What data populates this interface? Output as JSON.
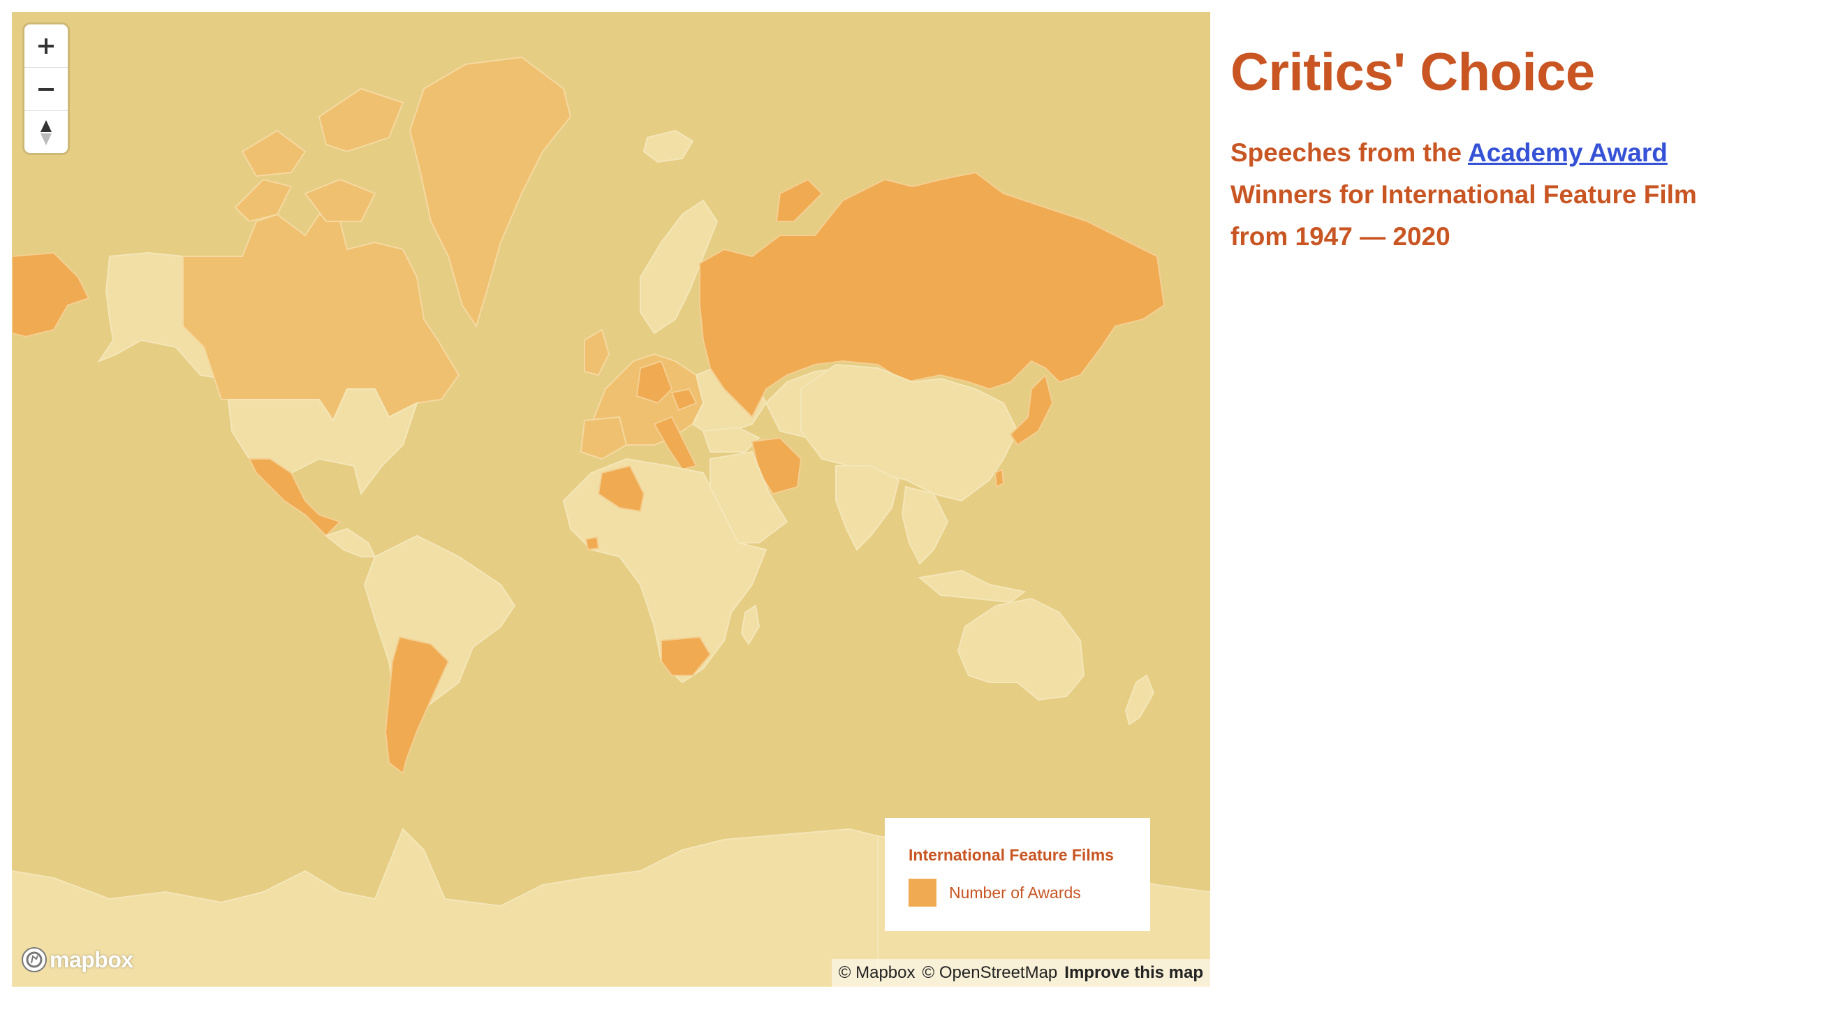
{
  "header": {
    "title": "Critics' Choice",
    "subtitle_before": "Speeches from the",
    "subtitle_link": "Academy Award",
    "subtitle_line2": "Winners for International Feature Film",
    "subtitle_line3": "from 1947 — 2020"
  },
  "map": {
    "zoom_controls": {
      "zoom_in": "+",
      "zoom_out": "−",
      "compass": "▲"
    },
    "legend": {
      "title": "International Feature Films",
      "item_label": "Number of Awards",
      "swatch_color": "#efaa52"
    },
    "logo_text": "mapbox",
    "attribution": {
      "mapbox": "© Mapbox",
      "osm": "© OpenStreetMap",
      "improve": "Improve this map"
    },
    "colors": {
      "water": "#e6cd84",
      "land_no_awards": "#f1dfa6",
      "land_some_awards": "#efc06f",
      "land_most_awards": "#efaa52",
      "text_accent": "#c85522",
      "link": "#3551d6"
    }
  }
}
